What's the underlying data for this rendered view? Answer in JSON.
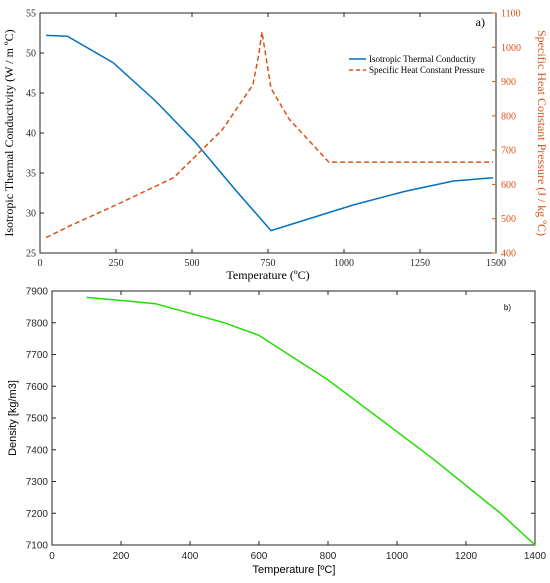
{
  "chart_data": [
    {
      "type": "line",
      "panel_label": "a)",
      "xlabel": "Temperature (ºC)",
      "xlim": [
        0,
        1500
      ],
      "x_ticks": [
        0,
        250,
        500,
        750,
        1000,
        1250,
        1500
      ],
      "ylabel_left": "Isotropic Thermal Conductivity (W / m ºC)",
      "ylim_left": [
        25,
        55
      ],
      "y_ticks_left": [
        25,
        30,
        35,
        40,
        45,
        50,
        55
      ],
      "ylabel_right": "Specific Heat Constant Pressure (J / kg ºC)",
      "ylim_right": [
        400,
        1100
      ],
      "y_ticks_right": [
        400,
        500,
        600,
        700,
        800,
        900,
        1000,
        1100
      ],
      "legend_position": "top-right",
      "grid": false,
      "series": [
        {
          "name": "Isotropic Thermal Conductity",
          "axis": "left",
          "color": "#0072bd",
          "style": "solid",
          "x": [
            20,
            90,
            240,
            380,
            510,
            640,
            760,
            1030,
            1200,
            1360,
            1490
          ],
          "y": [
            52.2,
            52.1,
            48.8,
            44.0,
            38.9,
            33.0,
            27.8,
            31.0,
            32.7,
            34.0,
            34.4
          ]
        },
        {
          "name": "Specific Heat Constant Pressure",
          "axis": "right",
          "color": "#d95319",
          "style": "dashed",
          "x": [
            20,
            100,
            250,
            440,
            600,
            700,
            720,
            730,
            740,
            760,
            820,
            950,
            1100,
            1300,
            1490
          ],
          "y": [
            445,
            480,
            540,
            620,
            760,
            890,
            980,
            1045,
            990,
            880,
            790,
            665,
            665,
            665,
            665
          ]
        }
      ]
    },
    {
      "type": "line",
      "panel_label": "b)",
      "xlabel": "Temperature [ºC]",
      "xlim": [
        0,
        1400
      ],
      "x_ticks": [
        0,
        200,
        400,
        600,
        800,
        1000,
        1200,
        1400
      ],
      "ylabel": "Density [kg/m3]",
      "ylim": [
        7100,
        7900
      ],
      "y_ticks": [
        7100,
        7200,
        7300,
        7400,
        7500,
        7600,
        7700,
        7800,
        7900
      ],
      "grid": false,
      "series": [
        {
          "color": "#22dd00",
          "x": [
            100,
            200,
            300,
            500,
            600,
            800,
            1100,
            1300,
            1400
          ],
          "y": [
            7880,
            7870,
            7860,
            7800,
            7760,
            7620,
            7375,
            7200,
            7100
          ]
        }
      ]
    }
  ]
}
